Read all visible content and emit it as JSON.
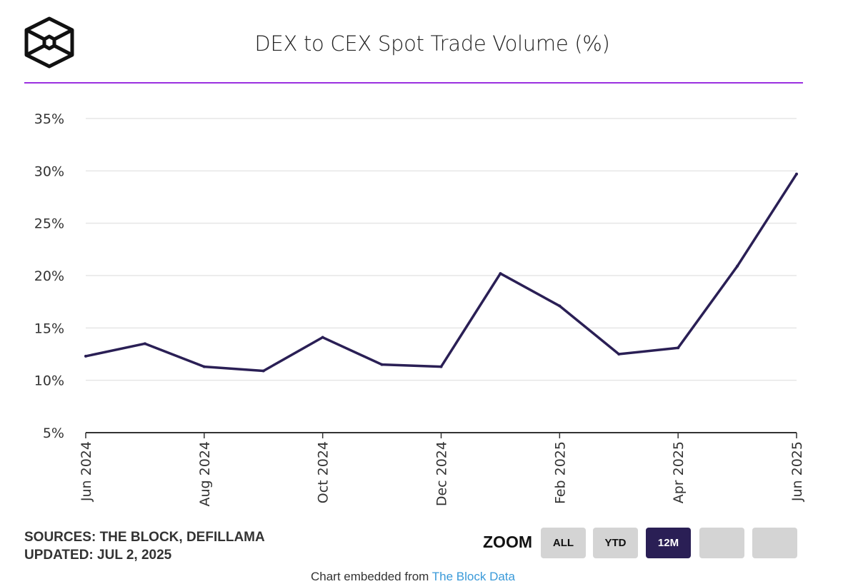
{
  "header": {
    "title": "DEX to CEX Spot Trade Volume (%)",
    "logo": "The Block cube logo"
  },
  "colors": {
    "line": "#2a1f55",
    "accent_rule": "#9b30e0",
    "active_button": "#2a1f55",
    "button": "#d4d4d4"
  },
  "chart_data": {
    "type": "line",
    "title": "DEX to CEX Spot Trade Volume (%)",
    "x": [
      "2024-06",
      "2024-07",
      "2024-08",
      "2024-09",
      "2024-10",
      "2024-11",
      "2024-12",
      "2025-01",
      "2025-02",
      "2025-03",
      "2025-04",
      "2025-05",
      "2025-06"
    ],
    "series": [
      {
        "values": [
          12.3,
          13.5,
          11.3,
          10.9,
          14.1,
          11.5,
          11.3,
          20.2,
          17.1,
          12.5,
          13.1,
          20.9,
          29.7
        ]
      }
    ],
    "ylim": [
      5,
      35
    ],
    "yticks": [
      5,
      10,
      15,
      20,
      25,
      30,
      35
    ],
    "ytick_labels": [
      "5%",
      "10%",
      "15%",
      "20%",
      "25%",
      "30%",
      "35%"
    ],
    "xtick_labels": [
      "Jun 2024",
      "Aug 2024",
      "Oct 2024",
      "Dec 2024",
      "Feb 2025",
      "Apr 2025",
      "Jun 2025"
    ],
    "xtick_indices": [
      0,
      2,
      4,
      6,
      8,
      10,
      12
    ],
    "grid": true
  },
  "footer": {
    "sources": "SOURCES: THE BLOCK, DEFILLAMA",
    "updated": "UPDATED: JUL 2, 2025",
    "zoom_label": "ZOOM",
    "zoom_buttons": [
      "ALL",
      "YTD",
      "12M",
      "",
      ""
    ],
    "zoom_active": "12M",
    "embed_prefix": "Chart embedded from ",
    "embed_link": "The Block Data"
  }
}
